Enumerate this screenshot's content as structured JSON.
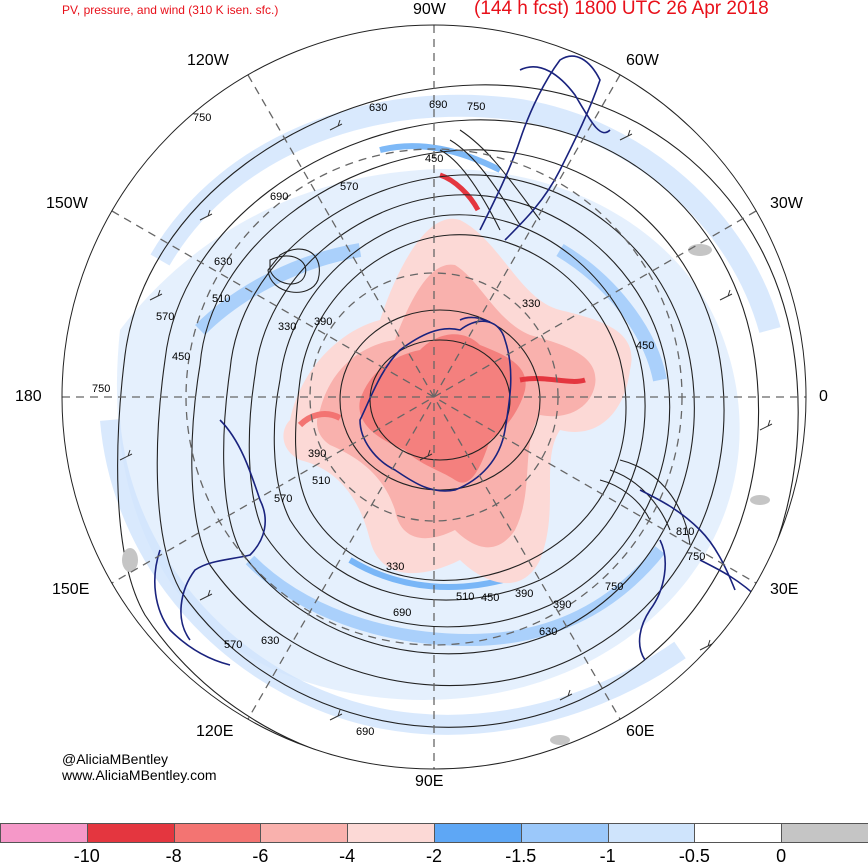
{
  "title": {
    "left": "PV, pressure, and wind (310 K isen. sfc.)",
    "right": "(144 h fcst) 1800 UTC 26 Apr 2018"
  },
  "longitude_labels": {
    "90W": "90W",
    "60W": "60W",
    "30W": "30W",
    "0": "0",
    "30E": "30E",
    "60E": "60E",
    "90E": "90E",
    "120E": "120E",
    "150E": "150E",
    "180": "180",
    "150W": "150W",
    "120W": "120W"
  },
  "contour_labels": [
    "630",
    "690",
    "750",
    "450",
    "570",
    "750",
    "690",
    "630",
    "510",
    "570",
    "450",
    "330",
    "390",
    "330",
    "750",
    "390",
    "510",
    "570",
    "450",
    "330",
    "390",
    "510",
    "450",
    "390",
    "630",
    "690",
    "570",
    "630",
    "690",
    "750",
    "810",
    "750"
  ],
  "credits": {
    "handle": "@AliciaMBentley",
    "website": "www.AliciaMBentley.com"
  },
  "colorbar": {
    "colors": [
      "#f598c8",
      "#e4363f",
      "#f37472",
      "#f9b1ad",
      "#fcd9d6",
      "#5ea7f5",
      "#9bc8fa",
      "#cfe4fc",
      "#ffffff",
      "#c5c5c5"
    ],
    "ticks": [
      "-10",
      "-8",
      "-6",
      "-4",
      "-2",
      "-1.5",
      "-1",
      "-0.5",
      "0"
    ]
  }
}
